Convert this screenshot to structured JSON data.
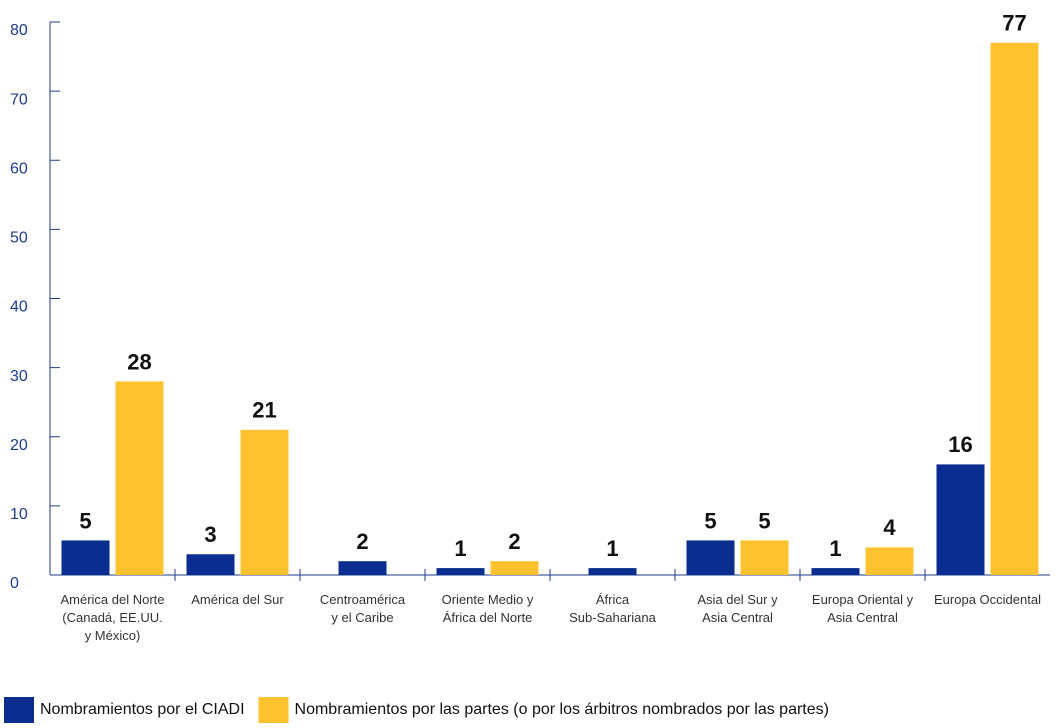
{
  "chart_data": {
    "type": "bar",
    "categories": [
      [
        "América del Norte",
        "(Canadá, EE.UU.",
        "y México)"
      ],
      [
        "América del Sur"
      ],
      [
        "Centroamérica",
        "y el Caribe"
      ],
      [
        "Oriente Medio y",
        "África del Norte"
      ],
      [
        "África",
        "Sub-Sahariana"
      ],
      [
        "Asia del Sur y",
        "Asia Central"
      ],
      [
        "Europa Oriental y",
        "Asia Central"
      ],
      [
        "Europa Occidental"
      ]
    ],
    "series": [
      {
        "name": "Nombramientos por el CIADI",
        "color": "#0a2d8f",
        "values": [
          5,
          3,
          2,
          1,
          1,
          5,
          1,
          16
        ]
      },
      {
        "name": "Nombramientos por las partes (o por los árbitros nombrados por las partes)",
        "color": "#fdc22d",
        "values": [
          28,
          21,
          null,
          2,
          null,
          5,
          4,
          77
        ]
      }
    ],
    "ylim": [
      0,
      80
    ],
    "yticks": [
      0,
      10,
      20,
      30,
      40,
      50,
      60,
      70,
      80
    ],
    "legend": "bottom"
  }
}
